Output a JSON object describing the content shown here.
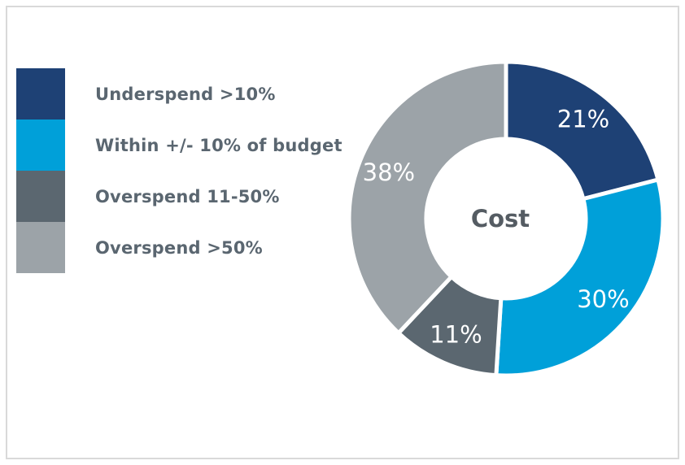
{
  "chart_data": {
    "type": "pie",
    "style": "donut",
    "center_label": "Cost",
    "legend_position": "left",
    "slices": [
      {
        "name": "Underspend >10%",
        "value": 21,
        "label": "21%",
        "color": "#1e4175"
      },
      {
        "name": "Within +/- 10% of budget",
        "value": 30,
        "label": "30%",
        "color": "#00a0d9"
      },
      {
        "name": "Overspend 11-50%",
        "value": 11,
        "label": "11%",
        "color": "#5b6770"
      },
      {
        "name": "Overspend >50%",
        "value": 38,
        "label": "38%",
        "color": "#9ca3a8"
      }
    ]
  }
}
